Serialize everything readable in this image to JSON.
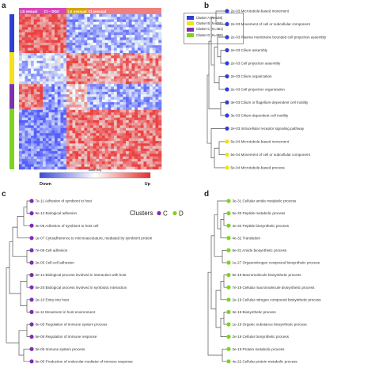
{
  "panels": {
    "a": "a",
    "b": "b",
    "c": "c",
    "d": "d"
  },
  "heatmap": {
    "column_headers": [
      {
        "label": "LS sexual",
        "color": "#d946b7"
      },
      {
        "label": "CI – DG0",
        "color": "#d946b7"
      },
      {
        "label": "LS asexual",
        "color": "#d6a400"
      },
      {
        "label": "CI asexual",
        "color": "#f08080"
      }
    ],
    "color_key": {
      "title": "Color Key",
      "low": "Down",
      "high": "Up",
      "low_color": "#3b4bd8",
      "mid_color": "#ffffff",
      "high_color": "#e0302f"
    },
    "legend": [
      {
        "label": "Cluster A (N=538)",
        "color": "#2f3fd6"
      },
      {
        "label": "Cluster B (N=455)",
        "color": "#f2e21a"
      },
      {
        "label": "Cluster C (N=351)",
        "color": "#7d2fb0"
      },
      {
        "label": "Cluster D (N=856)",
        "color": "#7ed321"
      }
    ]
  },
  "tree_b": {
    "labels": [
      "2e-03 Microtubule-based movement",
      "2e-03 Movement of cell or subcellular component",
      "2e-03 Plasma membrane bounded cell projection assembly",
      "2e-03 Cilium assembly",
      "2e-03 Cell projection assembly",
      "2e-03 Cilium organization",
      "2e-03 Cell projection organization",
      "3e-03 Cilium or flagellum-dependent cell motility",
      "3e-03 Cilium-dependent cell motility",
      "2e-03 Intracellular receptor signaling pathway",
      "5e-04 Microtubule-based movement",
      "5e-04 Movement of cell or subcellular component",
      "5e-04 Microtubule-based process"
    ],
    "dot_colors": [
      "#2f3fd6",
      "#2f3fd6",
      "#2f3fd6",
      "#2f3fd6",
      "#2f3fd6",
      "#2f3fd6",
      "#2f3fd6",
      "#2f3fd6",
      "#2f3fd6",
      "#2f3fd6",
      "#f2e21a",
      "#f2e21a",
      "#f2e21a"
    ]
  },
  "tree_c": {
    "legend_title": "Clusters",
    "legend_items": [
      {
        "label": "C",
        "color": "#7d2fb0"
      },
      {
        "label": "D",
        "color": "#7ed321"
      }
    ],
    "labels": [
      "7e-11 Adhesion of symbiont to host",
      "9e-12 Biological adhesion",
      "3e-05 Adhesion of symbiont to host cell",
      "1e-07 Cytoadherence to microvasculature, mediated by symbiont protein",
      "7e-05 Cell adhesion",
      "2e-05 Cell-cell adhesion",
      "2e-14 Biological process involved in interaction with host",
      "5e-20 Biological process involved in symbiotic interaction",
      "2e-10 Entry into host",
      "1e-11 Movement in host environment",
      "8e-05 Regulation of immune system process",
      "5e-05 Regulation of immune response",
      "3e-05 Immune system process",
      "8e-05 Production of molecular mediator of immune response"
    ],
    "dot_colors": [
      "#7d2fb0",
      "#7d2fb0",
      "#7d2fb0",
      "#7d2fb0",
      "#7d2fb0",
      "#7d2fb0",
      "#7d2fb0",
      "#7d2fb0",
      "#7d2fb0",
      "#7d2fb0",
      "#7d2fb0",
      "#7d2fb0",
      "#7d2fb0",
      "#7d2fb0"
    ]
  },
  "tree_d": {
    "labels": [
      "3e-31 Cellular amide metabolic process",
      "5e-33 Peptide metabolic process",
      "4e-32 Peptide biosynthetic process",
      "4e-32 Translation",
      "6e-31 Amide biosynthetic process",
      "1e-27 Organonitrogen compound biosynthetic process",
      "8e-19 Macromolecule biosynthetic process",
      "7e-19 Cellular macromolecule biosynthetic process",
      "2e-19 Cellular nitrogen compound biosynthetic process",
      "3e-19 Biosynthetic process",
      "1e-19 Organic substance biosynthetic process",
      "2e-19 Cellular biosynthetic process",
      "2e-19 Protein metabolic process",
      "4e-22 Cellular protein metabolic process"
    ],
    "dot_colors": [
      "#7ed321",
      "#7ed321",
      "#7ed321",
      "#7ed321",
      "#7ed321",
      "#7ed321",
      "#7ed321",
      "#7ed321",
      "#7ed321",
      "#7ed321",
      "#7ed321",
      "#7ed321",
      "#7ed321",
      "#7ed321"
    ]
  }
}
